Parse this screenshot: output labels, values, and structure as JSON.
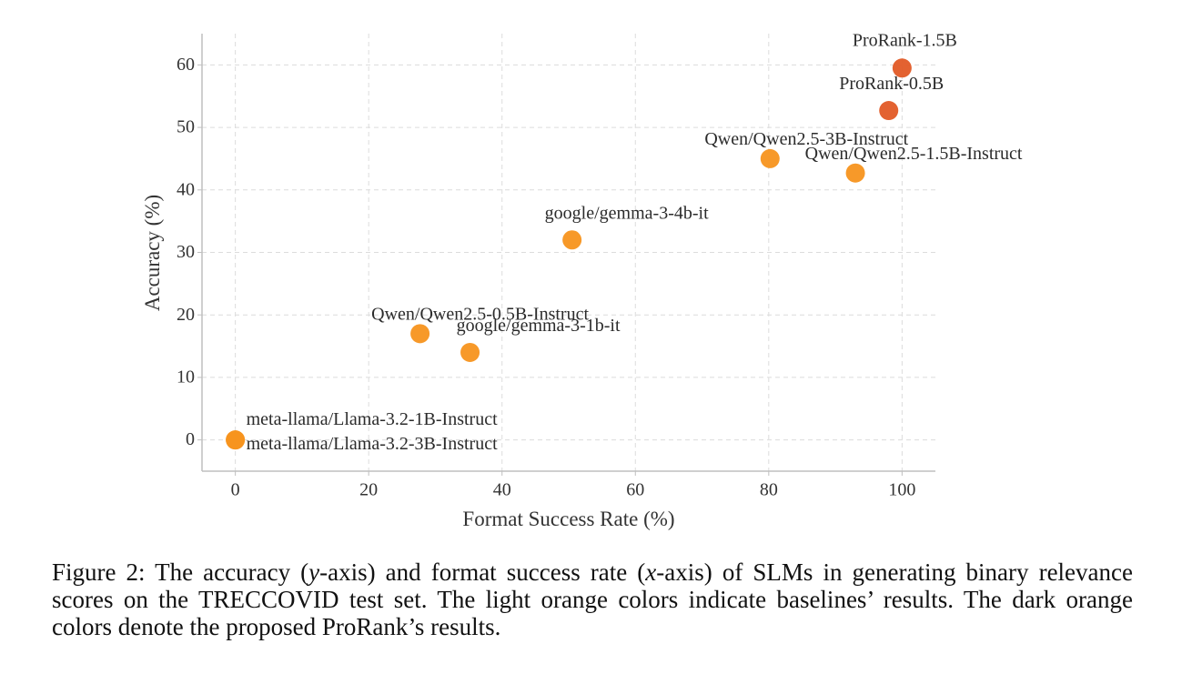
{
  "chart_data": {
    "type": "scatter",
    "title": "",
    "xlabel": "Format Success Rate (%)",
    "ylabel": "Accuracy (%)",
    "xlim": [
      -5,
      105
    ],
    "ylim": [
      -5,
      65
    ],
    "xticks": [
      0,
      20,
      40,
      60,
      80,
      100
    ],
    "yticks": [
      0,
      10,
      20,
      30,
      40,
      50,
      60
    ],
    "grid": true,
    "colors": {
      "baseline": "#F7941D",
      "proposed": "#E25A26"
    },
    "points": [
      {
        "label": "ProRank-1.5B",
        "x": 100,
        "y": 59.5,
        "group": "proposed"
      },
      {
        "label": "ProRank-0.5B",
        "x": 98,
        "y": 52.7,
        "group": "proposed"
      },
      {
        "label": "Qwen/Qwen2.5-3B-Instruct",
        "x": 80.2,
        "y": 45,
        "group": "baseline"
      },
      {
        "label": "Qwen/Qwen2.5-1.5B-Instruct",
        "x": 93,
        "y": 42.7,
        "group": "baseline"
      },
      {
        "label": "google/gemma-3-4b-it",
        "x": 50.5,
        "y": 32,
        "group": "baseline"
      },
      {
        "label": "Qwen/Qwen2.5-0.5B-Instruct",
        "x": 27.7,
        "y": 17,
        "group": "baseline"
      },
      {
        "label": "google/gemma-3-1b-it",
        "x": 35.2,
        "y": 14,
        "group": "baseline"
      },
      {
        "label": "meta-llama/Llama-3.2-1B-Instruct",
        "x": 0,
        "y": 0,
        "group": "baseline"
      },
      {
        "label": "meta-llama/Llama-3.2-3B-Instruct",
        "x": 0,
        "y": 0,
        "group": "baseline"
      }
    ]
  },
  "caption": {
    "prefix": "Figure 2:  The accuracy (",
    "y_symbol": "y",
    "middle": "-axis) and format success rate (",
    "x_symbol": "x",
    "suffix": "-axis) of SLMs in generating binary relevance scores on the TRECCOVID test set. The light orange colors indicate baselines’ results. The dark orange colors denote the proposed ProRank’s results."
  }
}
